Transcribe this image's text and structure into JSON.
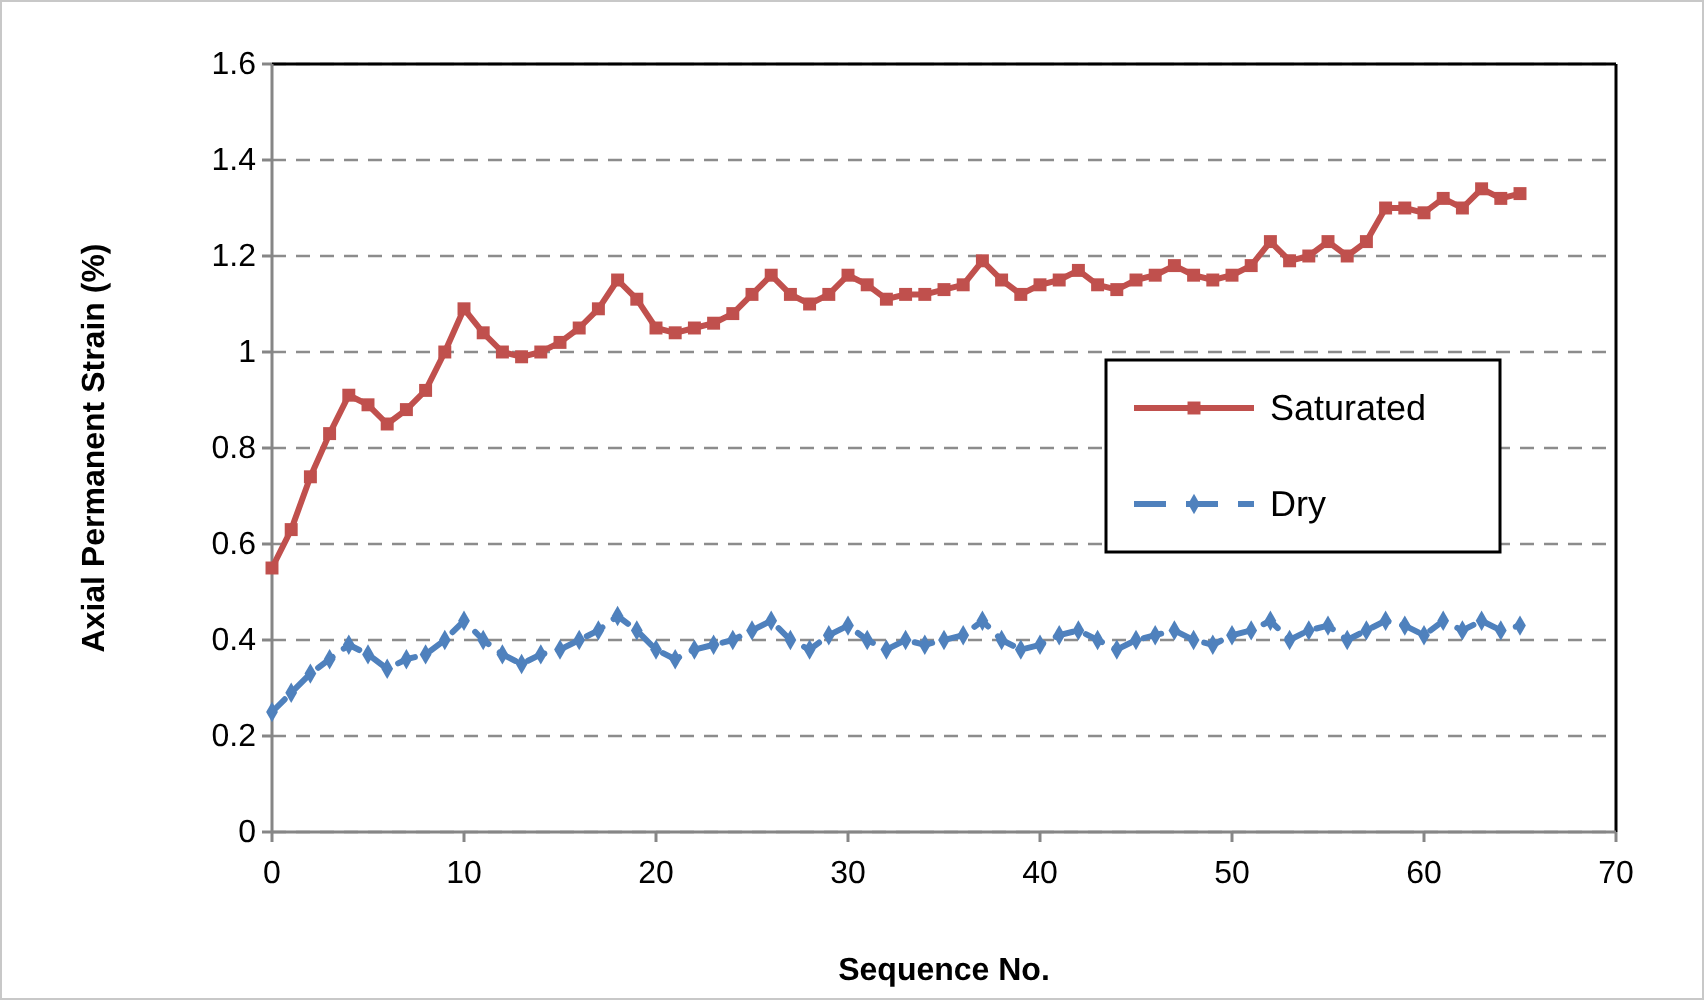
{
  "chart_data": {
    "type": "line",
    "xlabel": "Sequence  No.",
    "ylabel": "Axial Permanent  Strain (%)",
    "x": [
      0,
      1,
      2,
      3,
      4,
      5,
      6,
      7,
      8,
      9,
      10,
      11,
      12,
      13,
      14,
      15,
      16,
      17,
      18,
      19,
      20,
      21,
      22,
      23,
      24,
      25,
      26,
      27,
      28,
      29,
      30,
      31,
      32,
      33,
      34,
      35,
      36,
      37,
      38,
      39,
      40,
      41,
      42,
      43,
      44,
      45,
      46,
      47,
      48,
      49,
      50,
      51,
      52,
      53,
      54,
      55,
      56,
      57,
      58,
      59,
      60,
      61,
      62,
      63,
      64,
      65
    ],
    "series": [
      {
        "name": "Saturated",
        "color": "#c0504d",
        "marker": "square",
        "line_style": "solid",
        "values": [
          0.55,
          0.63,
          0.74,
          0.83,
          0.91,
          0.89,
          0.85,
          0.88,
          0.92,
          1.0,
          1.09,
          1.04,
          1.0,
          0.99,
          1.0,
          1.02,
          1.05,
          1.09,
          1.15,
          1.11,
          1.05,
          1.04,
          1.05,
          1.06,
          1.08,
          1.12,
          1.16,
          1.12,
          1.1,
          1.12,
          1.16,
          1.14,
          1.11,
          1.12,
          1.12,
          1.13,
          1.14,
          1.19,
          1.15,
          1.12,
          1.14,
          1.15,
          1.17,
          1.14,
          1.13,
          1.15,
          1.16,
          1.18,
          1.16,
          1.15,
          1.16,
          1.18,
          1.23,
          1.19,
          1.2,
          1.23,
          1.2,
          1.23,
          1.3,
          1.3,
          1.29,
          1.32,
          1.3,
          1.34,
          1.32,
          1.33
        ]
      },
      {
        "name": "Dry",
        "color": "#4f81bd",
        "marker": "diamond",
        "line_style": "dashed",
        "values": [
          0.25,
          0.29,
          0.33,
          0.36,
          0.39,
          0.37,
          0.34,
          0.36,
          0.37,
          0.4,
          0.44,
          0.4,
          0.37,
          0.35,
          0.37,
          0.38,
          0.4,
          0.42,
          0.45,
          0.42,
          0.38,
          0.36,
          0.38,
          0.39,
          0.4,
          0.42,
          0.44,
          0.4,
          0.38,
          0.41,
          0.43,
          0.4,
          0.38,
          0.4,
          0.39,
          0.4,
          0.41,
          0.44,
          0.4,
          0.38,
          0.39,
          0.41,
          0.42,
          0.4,
          0.38,
          0.4,
          0.41,
          0.42,
          0.4,
          0.39,
          0.41,
          0.42,
          0.44,
          0.4,
          0.42,
          0.43,
          0.4,
          0.42,
          0.44,
          0.43,
          0.41,
          0.44,
          0.42,
          0.44,
          0.42,
          0.43
        ]
      }
    ],
    "xlim": [
      0,
      70
    ],
    "xticks": [
      0,
      10,
      20,
      30,
      40,
      50,
      60,
      70
    ],
    "ylim": [
      0,
      1.6
    ],
    "yticks": [
      0,
      0.2,
      0.4,
      0.6,
      0.8,
      1,
      1.2,
      1.4,
      1.6
    ],
    "grid": "y",
    "legend": "right"
  }
}
